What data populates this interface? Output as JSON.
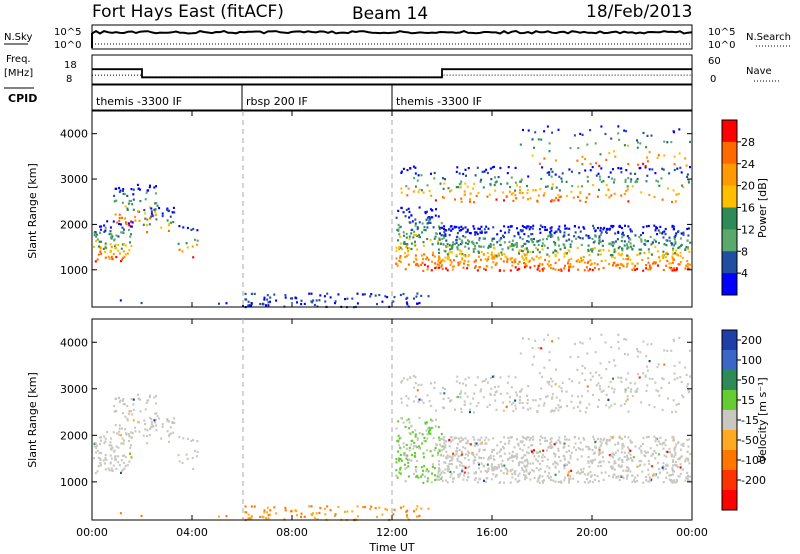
{
  "header": {
    "station": "Fort Hays East (fitACF)",
    "beam": "Beam 14",
    "date": "18/Feb/2013"
  },
  "top_panels": {
    "nsky_label": "N.Sky",
    "nsky_ticks": [
      "10^5",
      "10^0"
    ],
    "nsearch_label": "N.Search",
    "nsearch_ticks": [
      "10^5",
      "10^0"
    ],
    "freq_label_1": "Freq.",
    "freq_label_2": "[MHz]",
    "freq_ticks": [
      "18",
      "8"
    ],
    "nave_label": "Nave",
    "nave_ticks": [
      "60",
      "0"
    ],
    "cpid_label": "CPID"
  },
  "cpid_segments": [
    {
      "label": "themis -3300 IF",
      "start_hour": 0,
      "end_hour": 6
    },
    {
      "label": "rbsp 200 IF",
      "start_hour": 6,
      "end_hour": 12
    },
    {
      "label": "themis -3300 IF",
      "start_hour": 12,
      "end_hour": 24
    }
  ],
  "power_colorbar": {
    "label": "Power [dB]",
    "ticks": [
      "28",
      "24",
      "20",
      "16",
      "12",
      "8",
      "4"
    ],
    "colors": [
      "#ff0000",
      "#ff6a00",
      "#ff9a00",
      "#ffbf00",
      "#2e8b57",
      "#5aa86b",
      "#1f4fa0",
      "#0000ff"
    ]
  },
  "velocity_colorbar": {
    "label": "Velocity [m s⁻¹]",
    "ticks": [
      "200",
      "100",
      "50",
      "15",
      "-15",
      "-50",
      "-100",
      "-200"
    ],
    "colors": [
      "#1f3fa8",
      "#3a66c8",
      "#2e8b57",
      "#66cc33",
      "#c8c8c0",
      "#ffaa22",
      "#ff7700",
      "#ff3300",
      "#ff0000"
    ]
  },
  "chart_data": {
    "type": "heatmap",
    "xlabel": "Time UT",
    "x_ticks": [
      "00:00",
      "04:00",
      "08:00",
      "12:00",
      "16:00",
      "20:00",
      "00:00"
    ],
    "xlim_hours": [
      0,
      24
    ],
    "ylabel": "Slant Range [km]",
    "y_ticks": [
      "4000",
      "3000",
      "2000",
      "1000"
    ],
    "ylim_km": [
      180,
      4500
    ],
    "panels": [
      "Power",
      "Velocity"
    ],
    "frequency_mhz": [
      {
        "start_hour": 0,
        "end_hour": 2,
        "value": 14
      },
      {
        "start_hour": 2,
        "end_hour": 14,
        "value": 10.5
      },
      {
        "start_hour": 14,
        "end_hour": 24,
        "value": 14
      }
    ],
    "nave": [
      {
        "start_hour": 0,
        "end_hour": 2,
        "value": 23
      },
      {
        "start_hour": 2,
        "end_hour": 14,
        "value": 14
      },
      {
        "start_hour": 14,
        "end_hour": 24,
        "value": 23
      }
    ],
    "mode_boundaries_hours": [
      6,
      12
    ]
  }
}
